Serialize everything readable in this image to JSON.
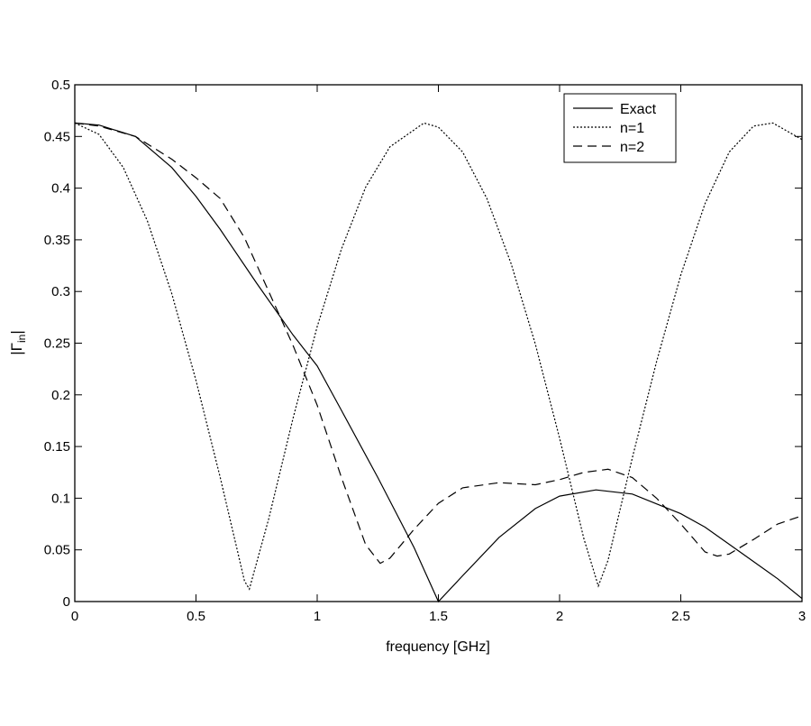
{
  "chart_data": {
    "type": "line",
    "title": "",
    "xlabel": "frequency [GHz]",
    "ylabel_main": "|Γ",
    "ylabel_sub": "in",
    "ylabel_end": "|",
    "xlim": [
      0,
      3
    ],
    "ylim": [
      0,
      0.5
    ],
    "xticks": [
      0,
      0.5,
      1,
      1.5,
      2,
      2.5,
      3
    ],
    "xtick_labels": [
      "0",
      "0.5",
      "1",
      "1.5",
      "2",
      "2.5",
      "3"
    ],
    "yticks": [
      0,
      0.05,
      0.1,
      0.15,
      0.2,
      0.25,
      0.3,
      0.35,
      0.4,
      0.45,
      0.5
    ],
    "ytick_labels": [
      "0",
      "0.05",
      "0.1",
      "0.15",
      "0.2",
      "0.25",
      "0.3",
      "0.35",
      "0.4",
      "0.45",
      "0.5"
    ],
    "grid": false,
    "legend_position": "top-right",
    "series": [
      {
        "name": "Exact",
        "style": "solid",
        "color": "#000000",
        "x": [
          0,
          0.1,
          0.25,
          0.4,
          0.5,
          0.6,
          0.75,
          0.9,
          1.0,
          1.1,
          1.25,
          1.4,
          1.5,
          1.6,
          1.75,
          1.9,
          2.0,
          2.15,
          2.3,
          2.5,
          2.6,
          2.75,
          2.9,
          3.0
        ],
        "y": [
          0.463,
          0.461,
          0.45,
          0.42,
          0.392,
          0.36,
          0.308,
          0.258,
          0.228,
          0.185,
          0.12,
          0.052,
          0.0,
          0.025,
          0.062,
          0.09,
          0.102,
          0.108,
          0.104,
          0.085,
          0.072,
          0.047,
          0.022,
          0.003
        ]
      },
      {
        "name": "n=1",
        "style": "dotted",
        "color": "#000000",
        "x": [
          0,
          0.1,
          0.2,
          0.3,
          0.4,
          0.5,
          0.6,
          0.7,
          0.72,
          0.8,
          0.9,
          1.0,
          1.1,
          1.2,
          1.3,
          1.44,
          1.5,
          1.6,
          1.7,
          1.8,
          1.9,
          2.0,
          2.1,
          2.16,
          2.2,
          2.3,
          2.4,
          2.5,
          2.6,
          2.7,
          2.8,
          2.88,
          3.0
        ],
        "y": [
          0.463,
          0.452,
          0.42,
          0.368,
          0.298,
          0.214,
          0.12,
          0.02,
          0.012,
          0.08,
          0.177,
          0.266,
          0.341,
          0.401,
          0.44,
          0.463,
          0.459,
          0.435,
          0.39,
          0.327,
          0.249,
          0.158,
          0.061,
          0.015,
          0.04,
          0.139,
          0.232,
          0.316,
          0.385,
          0.435,
          0.46,
          0.463,
          0.447
        ]
      },
      {
        "name": "n=2",
        "style": "dashed",
        "color": "#000000",
        "x": [
          0,
          0.1,
          0.25,
          0.4,
          0.5,
          0.6,
          0.7,
          0.8,
          0.9,
          1.0,
          1.1,
          1.2,
          1.26,
          1.3,
          1.4,
          1.5,
          1.6,
          1.75,
          1.9,
          2.0,
          2.1,
          2.2,
          2.3,
          2.4,
          2.5,
          2.6,
          2.65,
          2.7,
          2.8,
          2.9,
          3.0
        ],
        "y": [
          0.463,
          0.46,
          0.45,
          0.428,
          0.41,
          0.39,
          0.352,
          0.3,
          0.248,
          0.19,
          0.12,
          0.055,
          0.037,
          0.042,
          0.07,
          0.095,
          0.11,
          0.115,
          0.113,
          0.118,
          0.125,
          0.128,
          0.12,
          0.1,
          0.075,
          0.048,
          0.044,
          0.046,
          0.06,
          0.075,
          0.083
        ]
      }
    ]
  }
}
